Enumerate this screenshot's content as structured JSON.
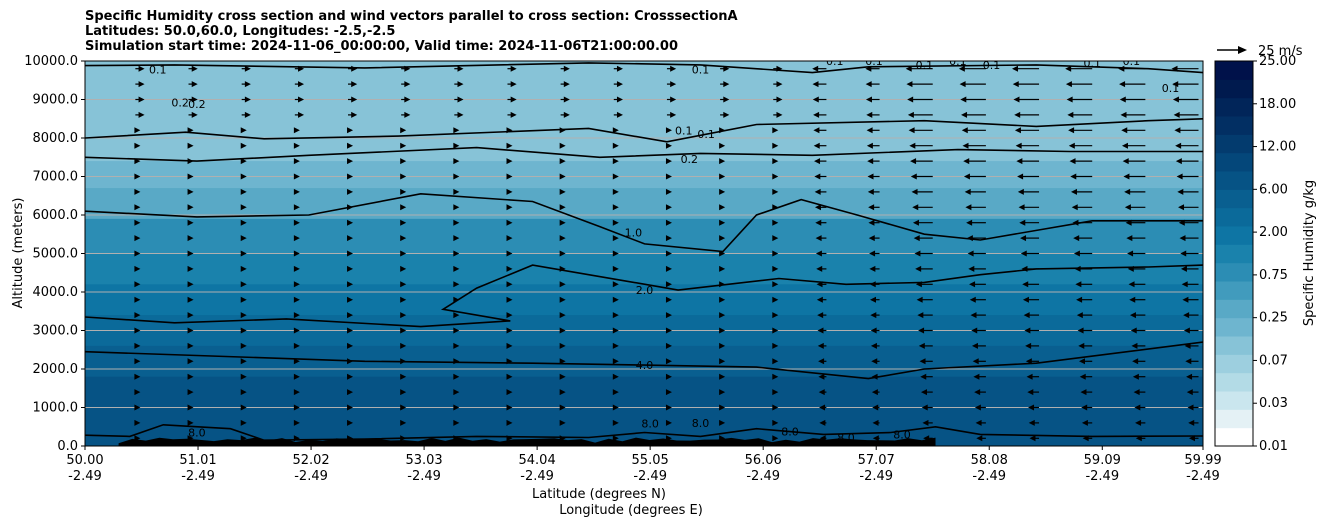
{
  "chart_data": {
    "type": "heatmap",
    "title_lines": [
      "Specific Humidity cross section and wind vectors parallel to cross section: CrosssectionA",
      "Latitudes: 50.0,60.0, Longitudes: -2.5,-2.5",
      "Simulation start time: 2024-11-06_00:00:00, Valid time: 2024-11-06T21:00:00.00"
    ],
    "ylabel": "Altitude (meters)",
    "xlabel_lat": "Latitude (degrees N)",
    "xlabel_lon": "Longitude (degrees E)",
    "ylim": [
      0,
      10000
    ],
    "xlim": [
      50.0,
      59.99
    ],
    "y_ticks": [
      0,
      1000,
      2000,
      3000,
      4000,
      5000,
      6000,
      7000,
      8000,
      9000,
      10000
    ],
    "y_tick_labels": [
      "0.0",
      "1000.0",
      "2000.0",
      "3000.0",
      "4000.0",
      "5000.0",
      "6000.0",
      "7000.0",
      "8000.0",
      "9000.0",
      "10000.0"
    ],
    "x_ticks": [
      {
        "lat": 50.0,
        "lat_label": "50.00",
        "lon_label": "-2.49"
      },
      {
        "lat": 51.01,
        "lat_label": "51.01",
        "lon_label": "-2.49"
      },
      {
        "lat": 52.02,
        "lat_label": "52.02",
        "lon_label": "-2.49"
      },
      {
        "lat": 53.03,
        "lat_label": "53.03",
        "lon_label": "-2.49"
      },
      {
        "lat": 54.04,
        "lat_label": "54.04",
        "lon_label": "-2.49"
      },
      {
        "lat": 55.05,
        "lat_label": "55.05",
        "lon_label": "-2.49"
      },
      {
        "lat": 56.06,
        "lat_label": "56.06",
        "lon_label": "-2.49"
      },
      {
        "lat": 57.07,
        "lat_label": "57.07",
        "lon_label": "-2.49"
      },
      {
        "lat": 58.08,
        "lat_label": "58.08",
        "lon_label": "-2.49"
      },
      {
        "lat": 59.09,
        "lat_label": "59.09",
        "lon_label": "-2.49"
      },
      {
        "lat": 59.99,
        "lat_label": "59.99",
        "lon_label": "-2.49"
      }
    ],
    "humidity_layers": [
      {
        "q": 6.0,
        "top_alt": 1800
      },
      {
        "q": 4.0,
        "top_alt": 2600
      },
      {
        "q": 3.0,
        "top_alt": 3400
      },
      {
        "q": 2.0,
        "top_alt": 4200
      },
      {
        "q": 1.5,
        "top_alt": 5000
      },
      {
        "q": 1.0,
        "top_alt": 5900
      },
      {
        "q": 0.5,
        "top_alt": 6700
      },
      {
        "q": 0.3,
        "top_alt": 7400
      },
      {
        "q": 0.2,
        "top_alt": 8100
      },
      {
        "q": 0.1,
        "top_alt": 10000
      }
    ],
    "contours": [
      {
        "label": "0.1",
        "points": [
          [
            50.0,
            9880
          ],
          [
            50.8,
            9900
          ],
          [
            52.5,
            9820
          ],
          [
            54.5,
            9950
          ],
          [
            55.5,
            9900
          ],
          [
            56.5,
            9700
          ],
          [
            57.0,
            9850
          ],
          [
            58.5,
            9900
          ],
          [
            59.5,
            9800
          ],
          [
            59.99,
            9700
          ]
        ]
      },
      {
        "label": "0.1",
        "points": [
          [
            50.0,
            8000
          ],
          [
            50.9,
            8150
          ],
          [
            51.6,
            7980
          ],
          [
            52.8,
            8050
          ],
          [
            54.5,
            8250
          ],
          [
            55.2,
            7900
          ],
          [
            56.0,
            8350
          ],
          [
            57.5,
            8450
          ],
          [
            58.5,
            8300
          ],
          [
            59.5,
            8450
          ],
          [
            59.99,
            8500
          ]
        ]
      },
      {
        "label": "0.2",
        "points": [
          [
            50.0,
            7500
          ],
          [
            51.0,
            7400
          ],
          [
            52.0,
            7550
          ],
          [
            53.5,
            7750
          ],
          [
            54.6,
            7500
          ],
          [
            55.5,
            7600
          ],
          [
            56.5,
            7550
          ],
          [
            57.8,
            7700
          ],
          [
            58.8,
            7650
          ],
          [
            59.99,
            7650
          ]
        ]
      },
      {
        "label": "1.0",
        "points": [
          [
            50.0,
            6100
          ],
          [
            51.0,
            5950
          ],
          [
            52.0,
            6000
          ],
          [
            53.0,
            6550
          ],
          [
            54.0,
            6350
          ],
          [
            54.6,
            5700
          ],
          [
            55.0,
            5250
          ],
          [
            55.7,
            5050
          ],
          [
            56.0,
            6000
          ],
          [
            56.4,
            6400
          ],
          [
            56.9,
            6000
          ],
          [
            57.5,
            5500
          ],
          [
            58.0,
            5350
          ],
          [
            59.0,
            5850
          ],
          [
            59.99,
            5850
          ]
        ]
      },
      {
        "label": "2.0",
        "points": [
          [
            50.0,
            3350
          ],
          [
            50.8,
            3200
          ],
          [
            51.8,
            3300
          ],
          [
            53.0,
            3100
          ],
          [
            53.8,
            3250
          ],
          [
            53.2,
            3550
          ],
          [
            53.5,
            4100
          ],
          [
            54.0,
            4700
          ],
          [
            54.8,
            4300
          ],
          [
            55.3,
            4050
          ],
          [
            56.2,
            4350
          ],
          [
            56.8,
            4200
          ],
          [
            57.5,
            4250
          ],
          [
            58.0,
            4450
          ],
          [
            58.5,
            4600
          ],
          [
            59.5,
            4650
          ],
          [
            59.99,
            4700
          ]
        ]
      },
      {
        "label": "4.0",
        "points": [
          [
            50.0,
            2450
          ],
          [
            51.0,
            2350
          ],
          [
            52.5,
            2200
          ],
          [
            54.0,
            2150
          ],
          [
            55.0,
            2100
          ],
          [
            56.0,
            2050
          ],
          [
            57.0,
            1750
          ],
          [
            57.5,
            2000
          ],
          [
            58.5,
            2150
          ],
          [
            59.99,
            2700
          ]
        ]
      },
      {
        "label": "8.0",
        "points": [
          [
            50.0,
            280
          ],
          [
            50.4,
            250
          ],
          [
            50.7,
            550
          ],
          [
            51.3,
            450
          ],
          [
            51.6,
            150
          ],
          [
            52.5,
            180
          ],
          [
            53.5,
            250
          ],
          [
            54.5,
            220
          ],
          [
            55.0,
            350
          ],
          [
            55.5,
            250
          ],
          [
            56.0,
            450
          ],
          [
            56.6,
            300
          ],
          [
            57.2,
            350
          ],
          [
            57.6,
            500
          ],
          [
            58.0,
            300
          ],
          [
            59.0,
            250
          ],
          [
            59.99,
            260
          ]
        ]
      }
    ],
    "contour_labels": [
      {
        "text": "0.1",
        "lat": 50.65,
        "alt": 9780
      },
      {
        "text": "0.2",
        "lat": 50.85,
        "alt": 8920
      },
      {
        "text": "0.2",
        "lat": 51.0,
        "alt": 8880
      },
      {
        "text": "0.1",
        "lat": 55.5,
        "alt": 9780
      },
      {
        "text": "0.1",
        "lat": 55.35,
        "alt": 8200
      },
      {
        "text": "0.1",
        "lat": 55.55,
        "alt": 8100
      },
      {
        "text": "0.2",
        "lat": 55.4,
        "alt": 7450
      },
      {
        "text": "0.1",
        "lat": 56.7,
        "alt": 10000
      },
      {
        "text": "0.1",
        "lat": 57.05,
        "alt": 10000
      },
      {
        "text": "0.1",
        "lat": 57.5,
        "alt": 9900
      },
      {
        "text": "0.1",
        "lat": 57.8,
        "alt": 10000
      },
      {
        "text": "0.1",
        "lat": 58.1,
        "alt": 9900
      },
      {
        "text": "0.1",
        "lat": 59.0,
        "alt": 9950
      },
      {
        "text": "0.1",
        "lat": 59.35,
        "alt": 10000
      },
      {
        "text": "0.1",
        "lat": 59.7,
        "alt": 9300
      },
      {
        "text": "1.0",
        "lat": 54.9,
        "alt": 5550
      },
      {
        "text": "2.0",
        "lat": 55.0,
        "alt": 4050
      },
      {
        "text": "4.0",
        "lat": 55.0,
        "alt": 2100
      },
      {
        "text": "8.0",
        "lat": 51.0,
        "alt": 350
      },
      {
        "text": "8.0",
        "lat": 55.05,
        "alt": 580
      },
      {
        "text": "8.0",
        "lat": 55.5,
        "alt": 600
      },
      {
        "text": "8.0",
        "lat": 56.3,
        "alt": 380
      },
      {
        "text": "8.0",
        "lat": 56.8,
        "alt": 220
      },
      {
        "text": "8.0",
        "lat": 57.3,
        "alt": 300
      }
    ],
    "wind_grid": {
      "lat_start": 50.45,
      "lat_step": 0.475,
      "lat_count": 21,
      "alt_start": 200,
      "alt_step": 400,
      "alt_count": 25
    },
    "terrain_lat_range": [
      50.3,
      57.6
    ],
    "colorbar": {
      "label": "Specific Humidity g/kg",
      "tick_labels": [
        "0.01",
        "0.03",
        "0.07",
        "0.25",
        "0.75",
        "2.00",
        "6.00",
        "12.00",
        "18.00",
        "25.00"
      ],
      "bin_colors": [
        "#ffffff",
        "#e4f1f5",
        "#cae6ee",
        "#b3dbe6",
        "#9dcfdf",
        "#87c3d7",
        "#6eb5cf",
        "#59a9c6",
        "#419bbd",
        "#2c8db4",
        "#1a82ac",
        "#0e75a4",
        "#0b6a9a",
        "#095f90",
        "#065385",
        "#04477a",
        "#033b6e",
        "#022f63",
        "#012559",
        "#001a4e",
        "#00114a"
      ]
    },
    "quiver_key": {
      "label": "25 m/s",
      "value": 25
    }
  }
}
